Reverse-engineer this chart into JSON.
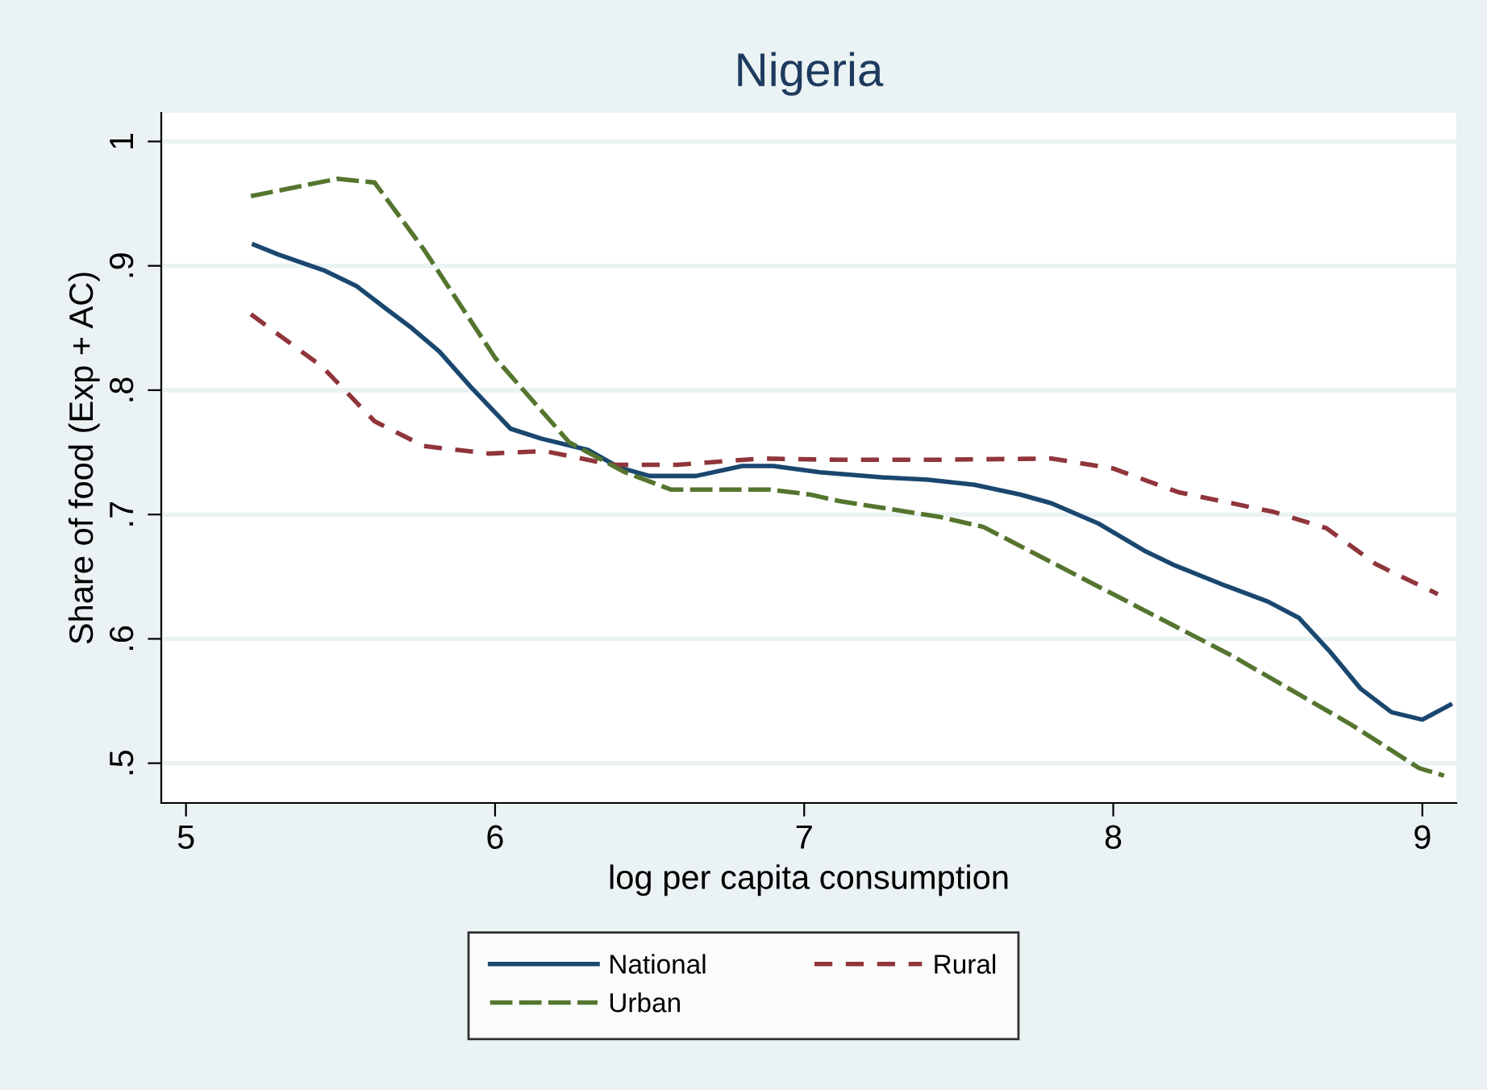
{
  "chart_data": {
    "type": "line",
    "title": "Nigeria",
    "xlabel": "log per capita consumption",
    "ylabel": "Share of food (Exp + AC)",
    "xlim": [
      4.92,
      9.11
    ],
    "ylim": [
      0.468,
      1.023
    ],
    "xticks": [
      5,
      6,
      7,
      8,
      9
    ],
    "yticks": [
      {
        "value": 0.5,
        "label": ".5"
      },
      {
        "value": 0.6,
        "label": ".6"
      },
      {
        "value": 0.7,
        "label": ".7"
      },
      {
        "value": 0.8,
        "label": ".8"
      },
      {
        "value": 0.9,
        "label": ".9"
      },
      1
    ],
    "grid": "y",
    "legend": "bottom",
    "marker": "none",
    "series": [
      {
        "name": "National",
        "color": "#1a476f",
        "line_style": "solid",
        "x": [
          5.22,
          5.3,
          5.45,
          5.55,
          5.65,
          5.73,
          5.82,
          5.92,
          6.0,
          6.05,
          6.15,
          6.3,
          6.4,
          6.5,
          6.65,
          6.8,
          6.9,
          7.05,
          7.25,
          7.4,
          7.55,
          7.7,
          7.8,
          7.95,
          8.1,
          8.2,
          8.35,
          8.5,
          8.6,
          8.7,
          8.8,
          8.9,
          9.0,
          9.09
        ],
        "values": [
          0.917,
          0.909,
          0.896,
          0.884,
          0.865,
          0.85,
          0.831,
          0.803,
          0.782,
          0.769,
          0.761,
          0.752,
          0.738,
          0.731,
          0.731,
          0.739,
          0.739,
          0.734,
          0.73,
          0.728,
          0.724,
          0.716,
          0.709,
          0.693,
          0.671,
          0.659,
          0.644,
          0.63,
          0.617,
          0.59,
          0.56,
          0.541,
          0.535,
          0.547
        ]
      },
      {
        "name": "Rural",
        "color": "#90353b",
        "line_style": "dashed",
        "x": [
          5.21,
          5.44,
          5.61,
          5.77,
          5.98,
          6.16,
          6.38,
          6.59,
          6.86,
          7.11,
          7.41,
          7.8,
          8.0,
          8.21,
          8.52,
          8.69,
          8.85,
          9.05
        ],
        "values": [
          0.861,
          0.819,
          0.775,
          0.755,
          0.749,
          0.751,
          0.74,
          0.74,
          0.745,
          0.744,
          0.744,
          0.745,
          0.737,
          0.718,
          0.702,
          0.689,
          0.66,
          0.636
        ]
      },
      {
        "name": "Urban",
        "color": "#55752f",
        "line_style": "dashed",
        "x": [
          5.21,
          5.49,
          5.61,
          5.77,
          6.0,
          6.24,
          6.42,
          6.57,
          6.89,
          7.02,
          7.11,
          7.44,
          7.58,
          7.96,
          8.38,
          8.77,
          8.99,
          9.07
        ],
        "values": [
          0.956,
          0.97,
          0.967,
          0.913,
          0.826,
          0.758,
          0.734,
          0.72,
          0.72,
          0.716,
          0.711,
          0.698,
          0.69,
          0.641,
          0.587,
          0.531,
          0.496,
          0.49
        ]
      }
    ]
  }
}
